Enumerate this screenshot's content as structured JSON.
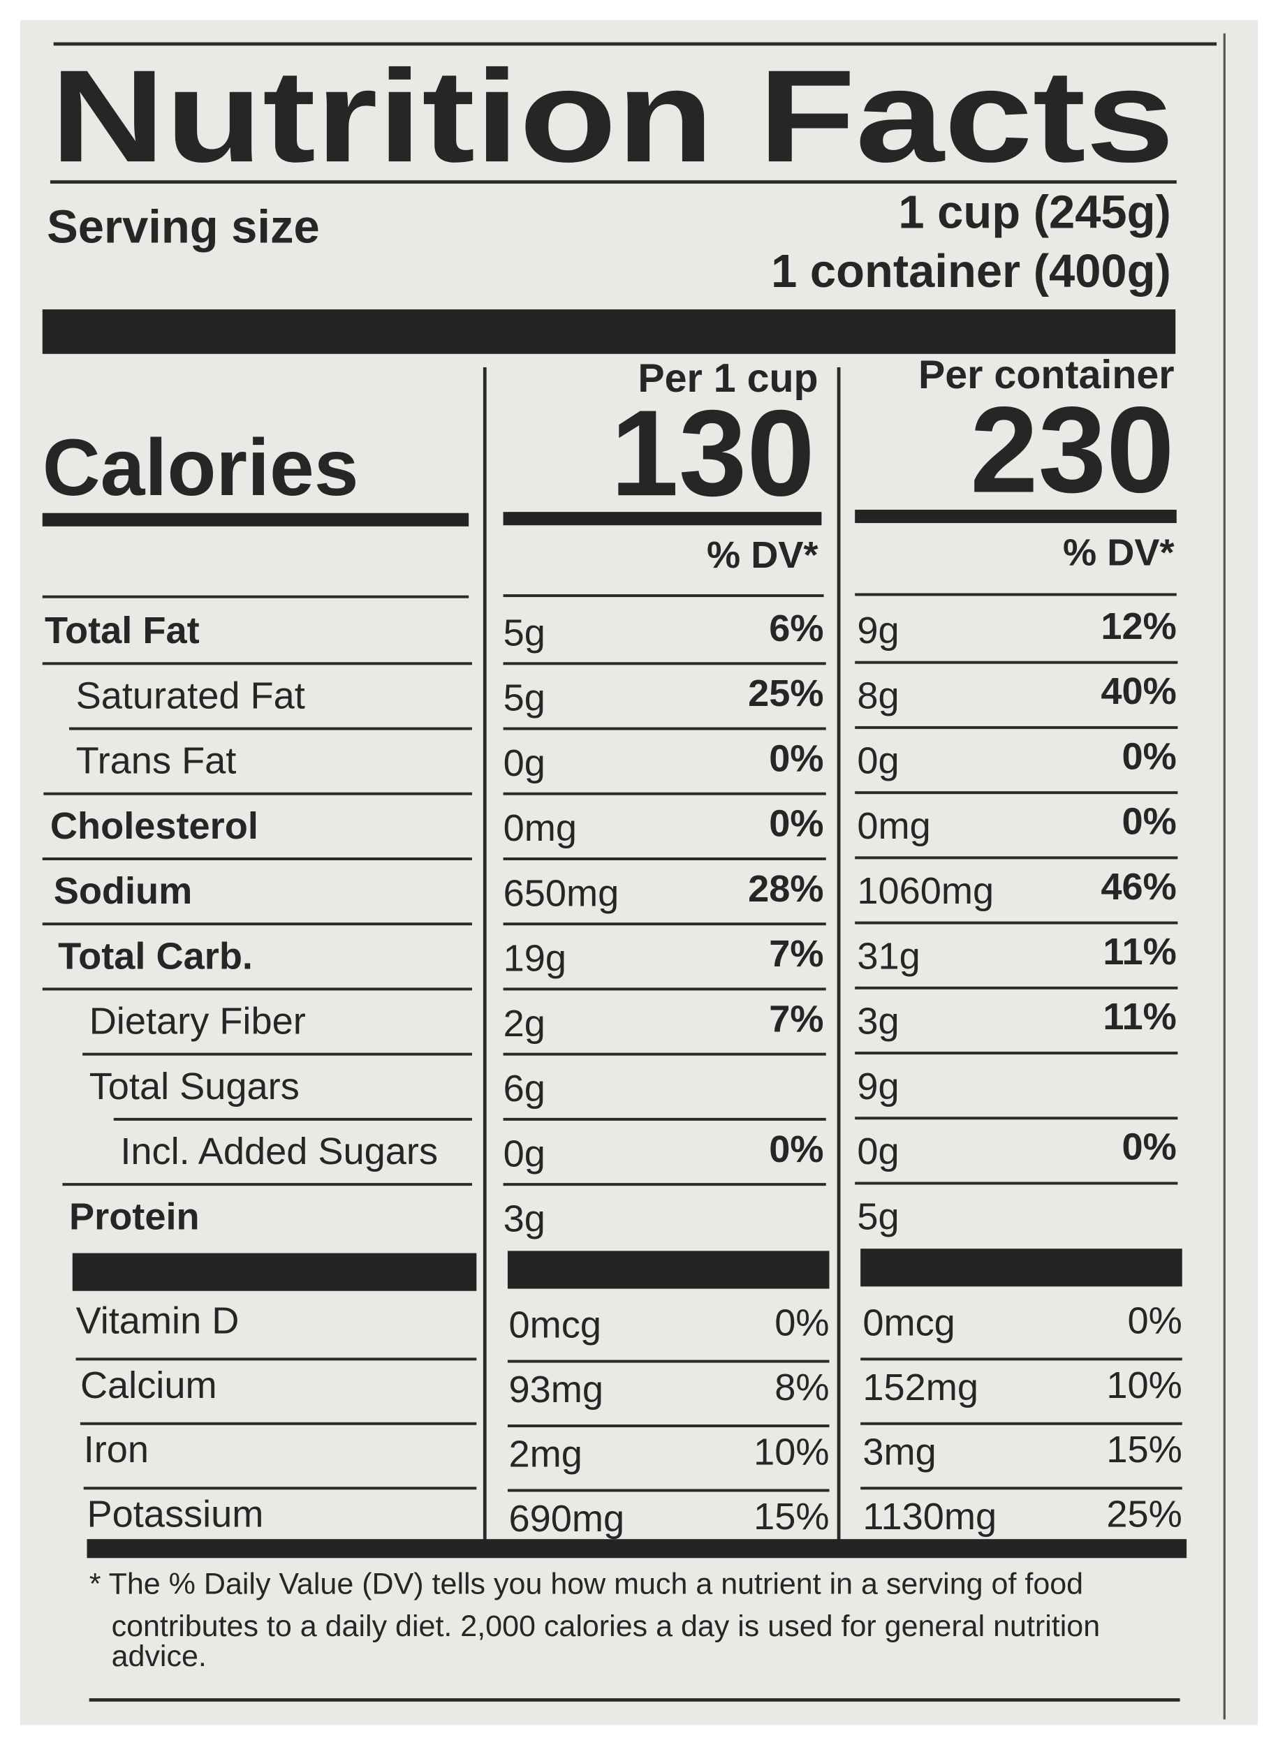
{
  "title": "Nutrition Facts",
  "serving_size": {
    "label": "Serving size",
    "values": [
      "1 cup (245g)",
      "1 container (400g)"
    ]
  },
  "calories": {
    "label": "Calories",
    "columns": [
      {
        "header": "Per 1 cup",
        "value": "130",
        "dv_header": "% DV*"
      },
      {
        "header": "Per container",
        "value": "230",
        "dv_header": "% DV*"
      }
    ]
  },
  "nutrients": [
    [
      "Total Fat",
      "5g",
      "6%",
      "9g",
      "12%"
    ],
    [
      "Saturated Fat",
      "5g",
      "25%",
      "8g",
      "40%"
    ],
    [
      "Trans Fat",
      "0g",
      "0%",
      "0g",
      "0%"
    ],
    [
      "Cholesterol",
      "0mg",
      "0%",
      "0mg",
      "0%"
    ],
    [
      "Sodium",
      "650mg",
      "28%",
      "1060mg",
      "46%"
    ],
    [
      "Total Carb.",
      "19g",
      "7%",
      "31g",
      "11%"
    ],
    [
      "Dietary Fiber",
      "2g",
      "7%",
      "3g",
      "11%"
    ],
    [
      "Total Sugars",
      "6g",
      null,
      "9g",
      null
    ],
    [
      "Incl. Added Sugars",
      "0g",
      "0%",
      "0g",
      "0%"
    ],
    [
      "Protein",
      "3g",
      null,
      "5g",
      null
    ]
  ],
  "vitamins": [
    [
      "Vitamin D",
      "0mcg",
      "0%",
      "0mcg",
      "0%"
    ],
    [
      "Calcium",
      "93mg",
      "8%",
      "152mg",
      "10%"
    ],
    [
      "Iron",
      "2mg",
      "10%",
      "3mg",
      "15%"
    ],
    [
      "Potassium",
      "690mg",
      "15%",
      "1130mg",
      "25%"
    ]
  ],
  "footnote": [
    "* The % Daily Value (DV) tells you how much a nutrient in a serving of food",
    "contributes to a daily diet. 2,000 calories a day is used for general nutrition",
    "advice."
  ]
}
